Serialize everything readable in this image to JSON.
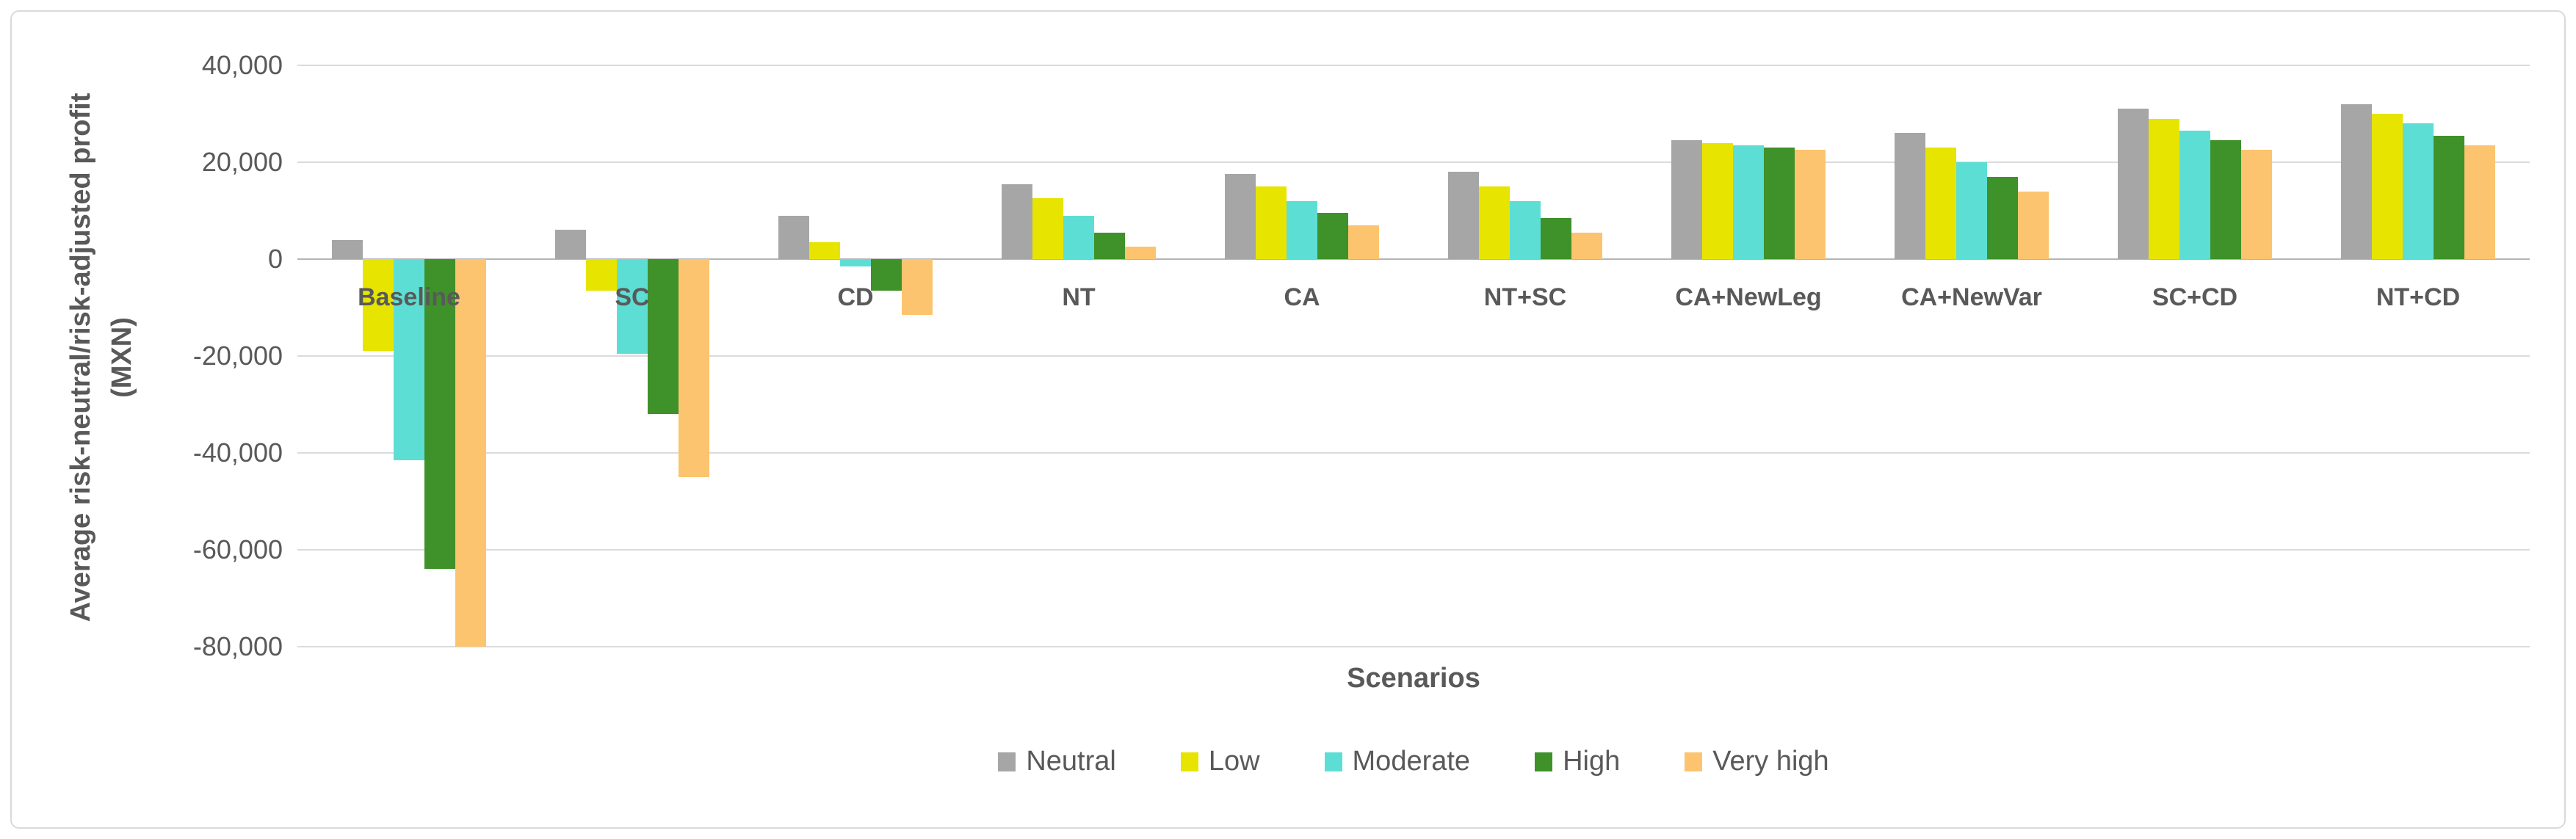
{
  "chart_data": {
    "type": "bar",
    "title": "",
    "xlabel": "Scenarios",
    "ylabel": "Average risk-neutral/risk-adjusted profit (MXN)",
    "ylabel_lines": [
      "Average risk-neutral/risk-adjusted profit",
      "(MXN)"
    ],
    "categories": [
      "Baseline",
      "SC",
      "CD",
      "NT",
      "CA",
      "NT+SC",
      "CA+NewLeg",
      "CA+NewVar",
      "SC+CD",
      "NT+CD"
    ],
    "series": [
      {
        "name": "Neutral",
        "color": "#a6a6a6",
        "values": [
          4000,
          6000,
          9000,
          15500,
          17500,
          18000,
          24500,
          26000,
          31000,
          32000
        ]
      },
      {
        "name": "Low",
        "color": "#e7e400",
        "values": [
          -19000,
          -6500,
          3500,
          12500,
          15000,
          15000,
          24000,
          23000,
          29000,
          30000
        ]
      },
      {
        "name": "Moderate",
        "color": "#5dded4",
        "values": [
          -41500,
          -19500,
          -1500,
          9000,
          12000,
          12000,
          23500,
          20000,
          26500,
          28000
        ]
      },
      {
        "name": "High",
        "color": "#3f9129",
        "values": [
          -64000,
          -32000,
          -6500,
          5500,
          9500,
          8500,
          23000,
          17000,
          24500,
          25500
        ]
      },
      {
        "name": "Very high",
        "color": "#fcc46f",
        "values": [
          -80000,
          -45000,
          -11500,
          2500,
          7000,
          5500,
          22500,
          14000,
          22500,
          23500
        ]
      }
    ],
    "ylim": [
      -80000,
      40000
    ],
    "ytick_step": 20000,
    "ytick_labels": [
      "40,000",
      "20,000",
      "0",
      "-20,000",
      "-40,000",
      "-60,000",
      "-80,000"
    ],
    "grid": true,
    "legend_position": "bottom"
  },
  "theme": {
    "text_color": "#595959",
    "gridline_color": "#dbdbdb",
    "zero_line_color": "#b5b5b5",
    "border_color": "#d9d9d9",
    "background": "#ffffff"
  }
}
